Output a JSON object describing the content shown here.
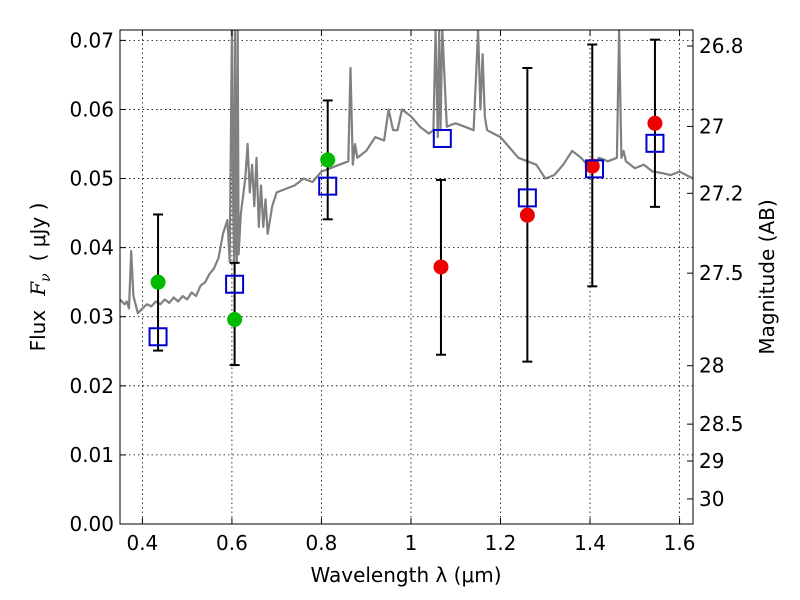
{
  "chart_data": {
    "type": "scatter",
    "xlabel": "Wavelength  λ (μm)",
    "ylabel": "Flux  F_ν  ( μJy )",
    "ylabel_left": "Flux",
    "ylabel_fnu": "F",
    "ylabel_sub": "ν",
    "ylabel_unit": "( μJy )",
    "y2label": "Magnitude (AB)",
    "xlim": [
      0.35,
      1.63
    ],
    "ylim": [
      0.0,
      0.0715
    ],
    "xticks": [
      0.4,
      0.6,
      0.8,
      1.0,
      1.2,
      1.4,
      1.6
    ],
    "xtick_labels": [
      "0.4",
      "0.6",
      "0.8",
      "1",
      "1.2",
      "1.4",
      "1.6"
    ],
    "yticks": [
      0.0,
      0.01,
      0.02,
      0.03,
      0.04,
      0.05,
      0.06,
      0.07
    ],
    "ytick_labels": [
      "0.00",
      "0.01",
      "0.02",
      "0.03",
      "0.04",
      "0.05",
      "0.06",
      "0.07"
    ],
    "mag_ticks": [
      26.8,
      27.0,
      27.2,
      27.5,
      28.0,
      28.5,
      29.0,
      30.0
    ],
    "mag_tick_labels": [
      "26.8",
      "27",
      "27.2",
      "27.5",
      "28",
      "28.5",
      "29",
      "30"
    ],
    "grid": true,
    "colors": {
      "spectrum": "#808080",
      "green": "#00bb00",
      "red": "#ee0000",
      "model": "#0000cc",
      "errorbar": "#000000"
    },
    "observed": [
      {
        "x": 0.435,
        "y": 0.035,
        "yerr_low": 0.0251,
        "yerr_high": 0.0448,
        "color": "green"
      },
      {
        "x": 0.606,
        "y": 0.0296,
        "yerr_low": 0.023,
        "yerr_high": 0.0378,
        "color": "green"
      },
      {
        "x": 0.814,
        "y": 0.0527,
        "yerr_low": 0.0441,
        "yerr_high": 0.0613,
        "color": "green"
      },
      {
        "x": 1.067,
        "y": 0.0372,
        "yerr_low": 0.0245,
        "yerr_high": 0.0498,
        "color": "red"
      },
      {
        "x": 1.26,
        "y": 0.0447,
        "yerr_low": 0.0235,
        "yerr_high": 0.066,
        "color": "red"
      },
      {
        "x": 1.405,
        "y": 0.0518,
        "yerr_low": 0.0344,
        "yerr_high": 0.0694,
        "color": "red"
      },
      {
        "x": 1.545,
        "y": 0.058,
        "yerr_low": 0.0459,
        "yerr_high": 0.0701,
        "color": "red"
      }
    ],
    "model_bands": [
      {
        "x": 0.435,
        "y": 0.0271
      },
      {
        "x": 0.606,
        "y": 0.0347
      },
      {
        "x": 0.814,
        "y": 0.0489
      },
      {
        "x": 1.07,
        "y": 0.0558
      },
      {
        "x": 1.26,
        "y": 0.0472
      },
      {
        "x": 1.41,
        "y": 0.0514
      },
      {
        "x": 1.545,
        "y": 0.0551
      }
    ],
    "spectrum": {
      "x": [
        0.35,
        0.36,
        0.365,
        0.37,
        0.375,
        0.38,
        0.39,
        0.4,
        0.41,
        0.42,
        0.43,
        0.44,
        0.45,
        0.46,
        0.47,
        0.48,
        0.49,
        0.5,
        0.51,
        0.52,
        0.53,
        0.54,
        0.55,
        0.56,
        0.57,
        0.58,
        0.59,
        0.595,
        0.6,
        0.603,
        0.605,
        0.607,
        0.609,
        0.611,
        0.613,
        0.615,
        0.62,
        0.63,
        0.635,
        0.64,
        0.645,
        0.65,
        0.655,
        0.66,
        0.665,
        0.67,
        0.675,
        0.68,
        0.69,
        0.7,
        0.72,
        0.74,
        0.76,
        0.78,
        0.8,
        0.82,
        0.84,
        0.86,
        0.865,
        0.87,
        0.875,
        0.88,
        0.9,
        0.92,
        0.94,
        0.95,
        0.96,
        0.97,
        0.98,
        1.0,
        1.02,
        1.04,
        1.05,
        1.055,
        1.06,
        1.063,
        1.066,
        1.07,
        1.08,
        1.09,
        1.1,
        1.12,
        1.14,
        1.15,
        1.155,
        1.16,
        1.165,
        1.17,
        1.2,
        1.22,
        1.24,
        1.26,
        1.28,
        1.3,
        1.32,
        1.34,
        1.36,
        1.38,
        1.4,
        1.42,
        1.44,
        1.46,
        1.465,
        1.47,
        1.475,
        1.48,
        1.5,
        1.52,
        1.54,
        1.56,
        1.58,
        1.6,
        1.63
      ],
      "y": [
        0.0325,
        0.0318,
        0.0322,
        0.0312,
        0.0395,
        0.033,
        0.0305,
        0.0312,
        0.0318,
        0.0315,
        0.0322,
        0.0318,
        0.0325,
        0.032,
        0.0328,
        0.0322,
        0.033,
        0.0325,
        0.0335,
        0.033,
        0.0345,
        0.035,
        0.0362,
        0.037,
        0.0385,
        0.042,
        0.044,
        0.038,
        0.0715,
        0.045,
        0.038,
        0.0715,
        0.042,
        0.038,
        0.0715,
        0.039,
        0.045,
        0.05,
        0.055,
        0.048,
        0.052,
        0.046,
        0.053,
        0.043,
        0.049,
        0.043,
        0.047,
        0.042,
        0.046,
        0.048,
        0.0485,
        0.049,
        0.05,
        0.0495,
        0.051,
        0.0515,
        0.052,
        0.0525,
        0.066,
        0.052,
        0.055,
        0.053,
        0.054,
        0.056,
        0.0555,
        0.06,
        0.057,
        0.057,
        0.06,
        0.059,
        0.0575,
        0.0565,
        0.057,
        0.0715,
        0.056,
        0.0715,
        0.057,
        0.0715,
        0.0575,
        0.0578,
        0.058,
        0.0575,
        0.057,
        0.0715,
        0.06,
        0.068,
        0.059,
        0.057,
        0.056,
        0.0545,
        0.053,
        0.0525,
        0.052,
        0.05,
        0.0505,
        0.052,
        0.054,
        0.053,
        0.0515,
        0.053,
        0.0525,
        0.053,
        0.0715,
        0.053,
        0.054,
        0.0525,
        0.0515,
        0.052,
        0.051,
        0.0508,
        0.0505,
        0.051,
        0.05
      ]
    }
  }
}
